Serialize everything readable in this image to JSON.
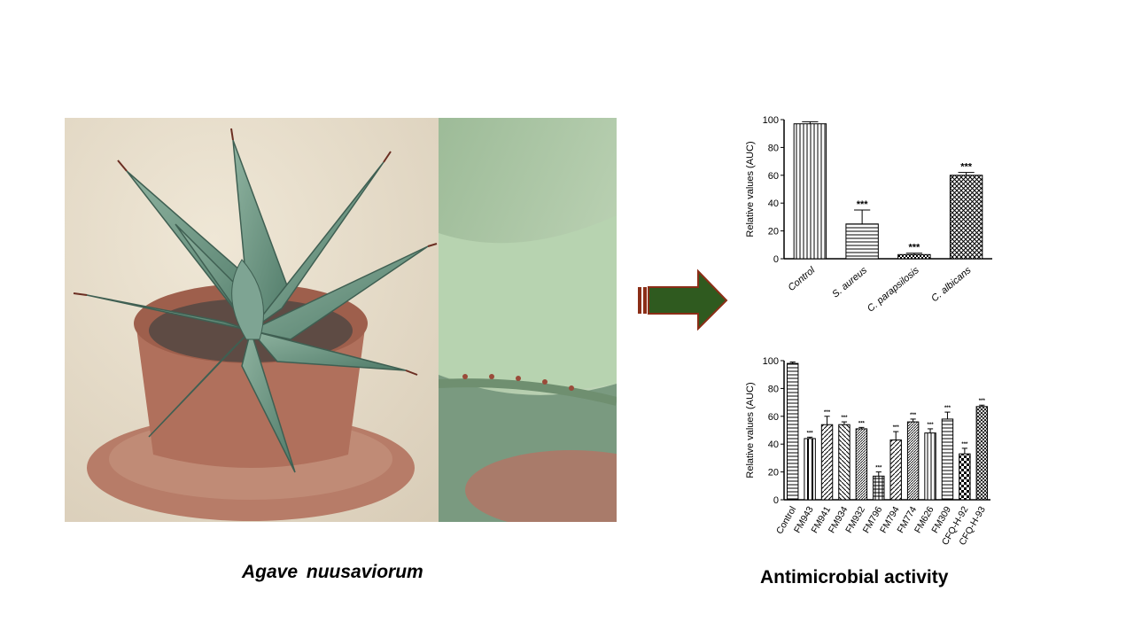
{
  "captions": {
    "plant": "Agave  nuusaviorum",
    "activity": "Antimicrobial activity"
  },
  "chart_data": [
    {
      "type": "bar",
      "ylabel": "Relative values (AUC)",
      "ylim": [
        0,
        100
      ],
      "yticks": [
        0,
        20,
        40,
        60,
        80,
        100
      ],
      "categories": [
        "Control",
        "S. aureus",
        "C. parapsilosis",
        "C. albicans"
      ],
      "values": [
        97,
        25,
        3,
        60
      ],
      "errors": [
        1.5,
        10,
        1,
        2
      ],
      "significance": [
        "",
        "***",
        "***",
        "***"
      ],
      "patterns": [
        "vertical",
        "horizontal",
        "checker-fine",
        "crosshatch"
      ],
      "italic_labels": [
        false,
        true,
        true,
        true
      ]
    },
    {
      "type": "bar",
      "ylabel": "Relative values (AUC)",
      "ylim": [
        0,
        100
      ],
      "yticks": [
        0,
        20,
        40,
        60,
        80,
        100
      ],
      "categories": [
        "Control",
        "FM943",
        "FM941",
        "FM934",
        "FM932",
        "FM796",
        "FM794",
        "FM774",
        "FM626",
        "FM309",
        "CFQ-H-92",
        "CFQ-H-93"
      ],
      "values": [
        98,
        44,
        54,
        54,
        51,
        17,
        43,
        56,
        48,
        58,
        33,
        67
      ],
      "errors": [
        1,
        1,
        6,
        2,
        1,
        3,
        6,
        2,
        3,
        5,
        4,
        1
      ],
      "significance": [
        "",
        "***",
        "***",
        "***",
        "***",
        "***",
        "***",
        "***",
        "***",
        "***",
        "***",
        "***"
      ],
      "patterns": [
        "horizontal",
        "vertical-thick",
        "diagonal",
        "diagonal-back",
        "diagonal-fine",
        "grid",
        "diagonal",
        "diagonal-fine",
        "vertical",
        "horizontal",
        "checker",
        "diamond"
      ]
    }
  ]
}
